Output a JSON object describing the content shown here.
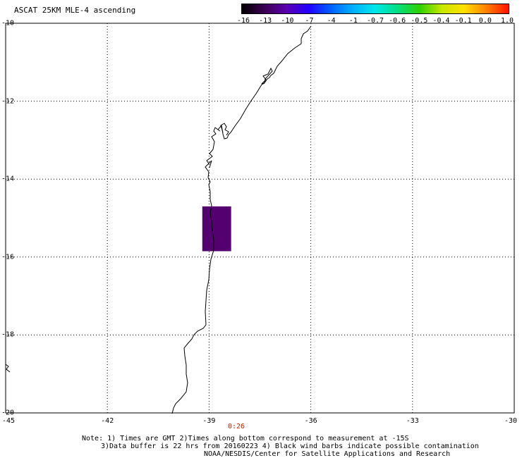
{
  "title": "ASCAT 25KM MLE-4 ascending",
  "colorbar": {
    "labels": [
      "-16",
      "-13",
      "-10",
      "-7",
      "-4",
      "-1",
      "-0.7",
      "-0.6",
      "-0.5",
      "-0.4",
      "-0.1",
      "0.0",
      "1.0"
    ],
    "gradient": [
      "#000000",
      "#3b0050",
      "#5a00b0",
      "#2000ff",
      "#0060ff",
      "#00b0ff",
      "#00e8e8",
      "#00e080",
      "#30d000",
      "#c8e800",
      "#ffe000",
      "#ff8000",
      "#ff1000"
    ]
  },
  "y_ticks": [
    "-10",
    "-12",
    "-14",
    "-16",
    "-18",
    "-20"
  ],
  "x_ticks": [
    "-45",
    "-42",
    "-39",
    "-36",
    "-33",
    "-30"
  ],
  "time_label": "0:26",
  "notes": {
    "line1": "Note: 1) Times are GMT 2)Times along bottom correspond to measurement at -15S",
    "line2": "3)Data buffer is 22 hrs from 20160223 4) Black wind barbs indicate possible contamination",
    "line3": "NOAA/NESDIS/Center for Satellite Applications and Research"
  },
  "data_cell": {
    "lon_min": -39.2,
    "lon_max": -38.35,
    "lat_min": -15.85,
    "lat_max": -14.7,
    "color": "#550070"
  },
  "map_extent": {
    "lon": [
      -45,
      -30
    ],
    "lat": [
      -20,
      -10
    ]
  }
}
